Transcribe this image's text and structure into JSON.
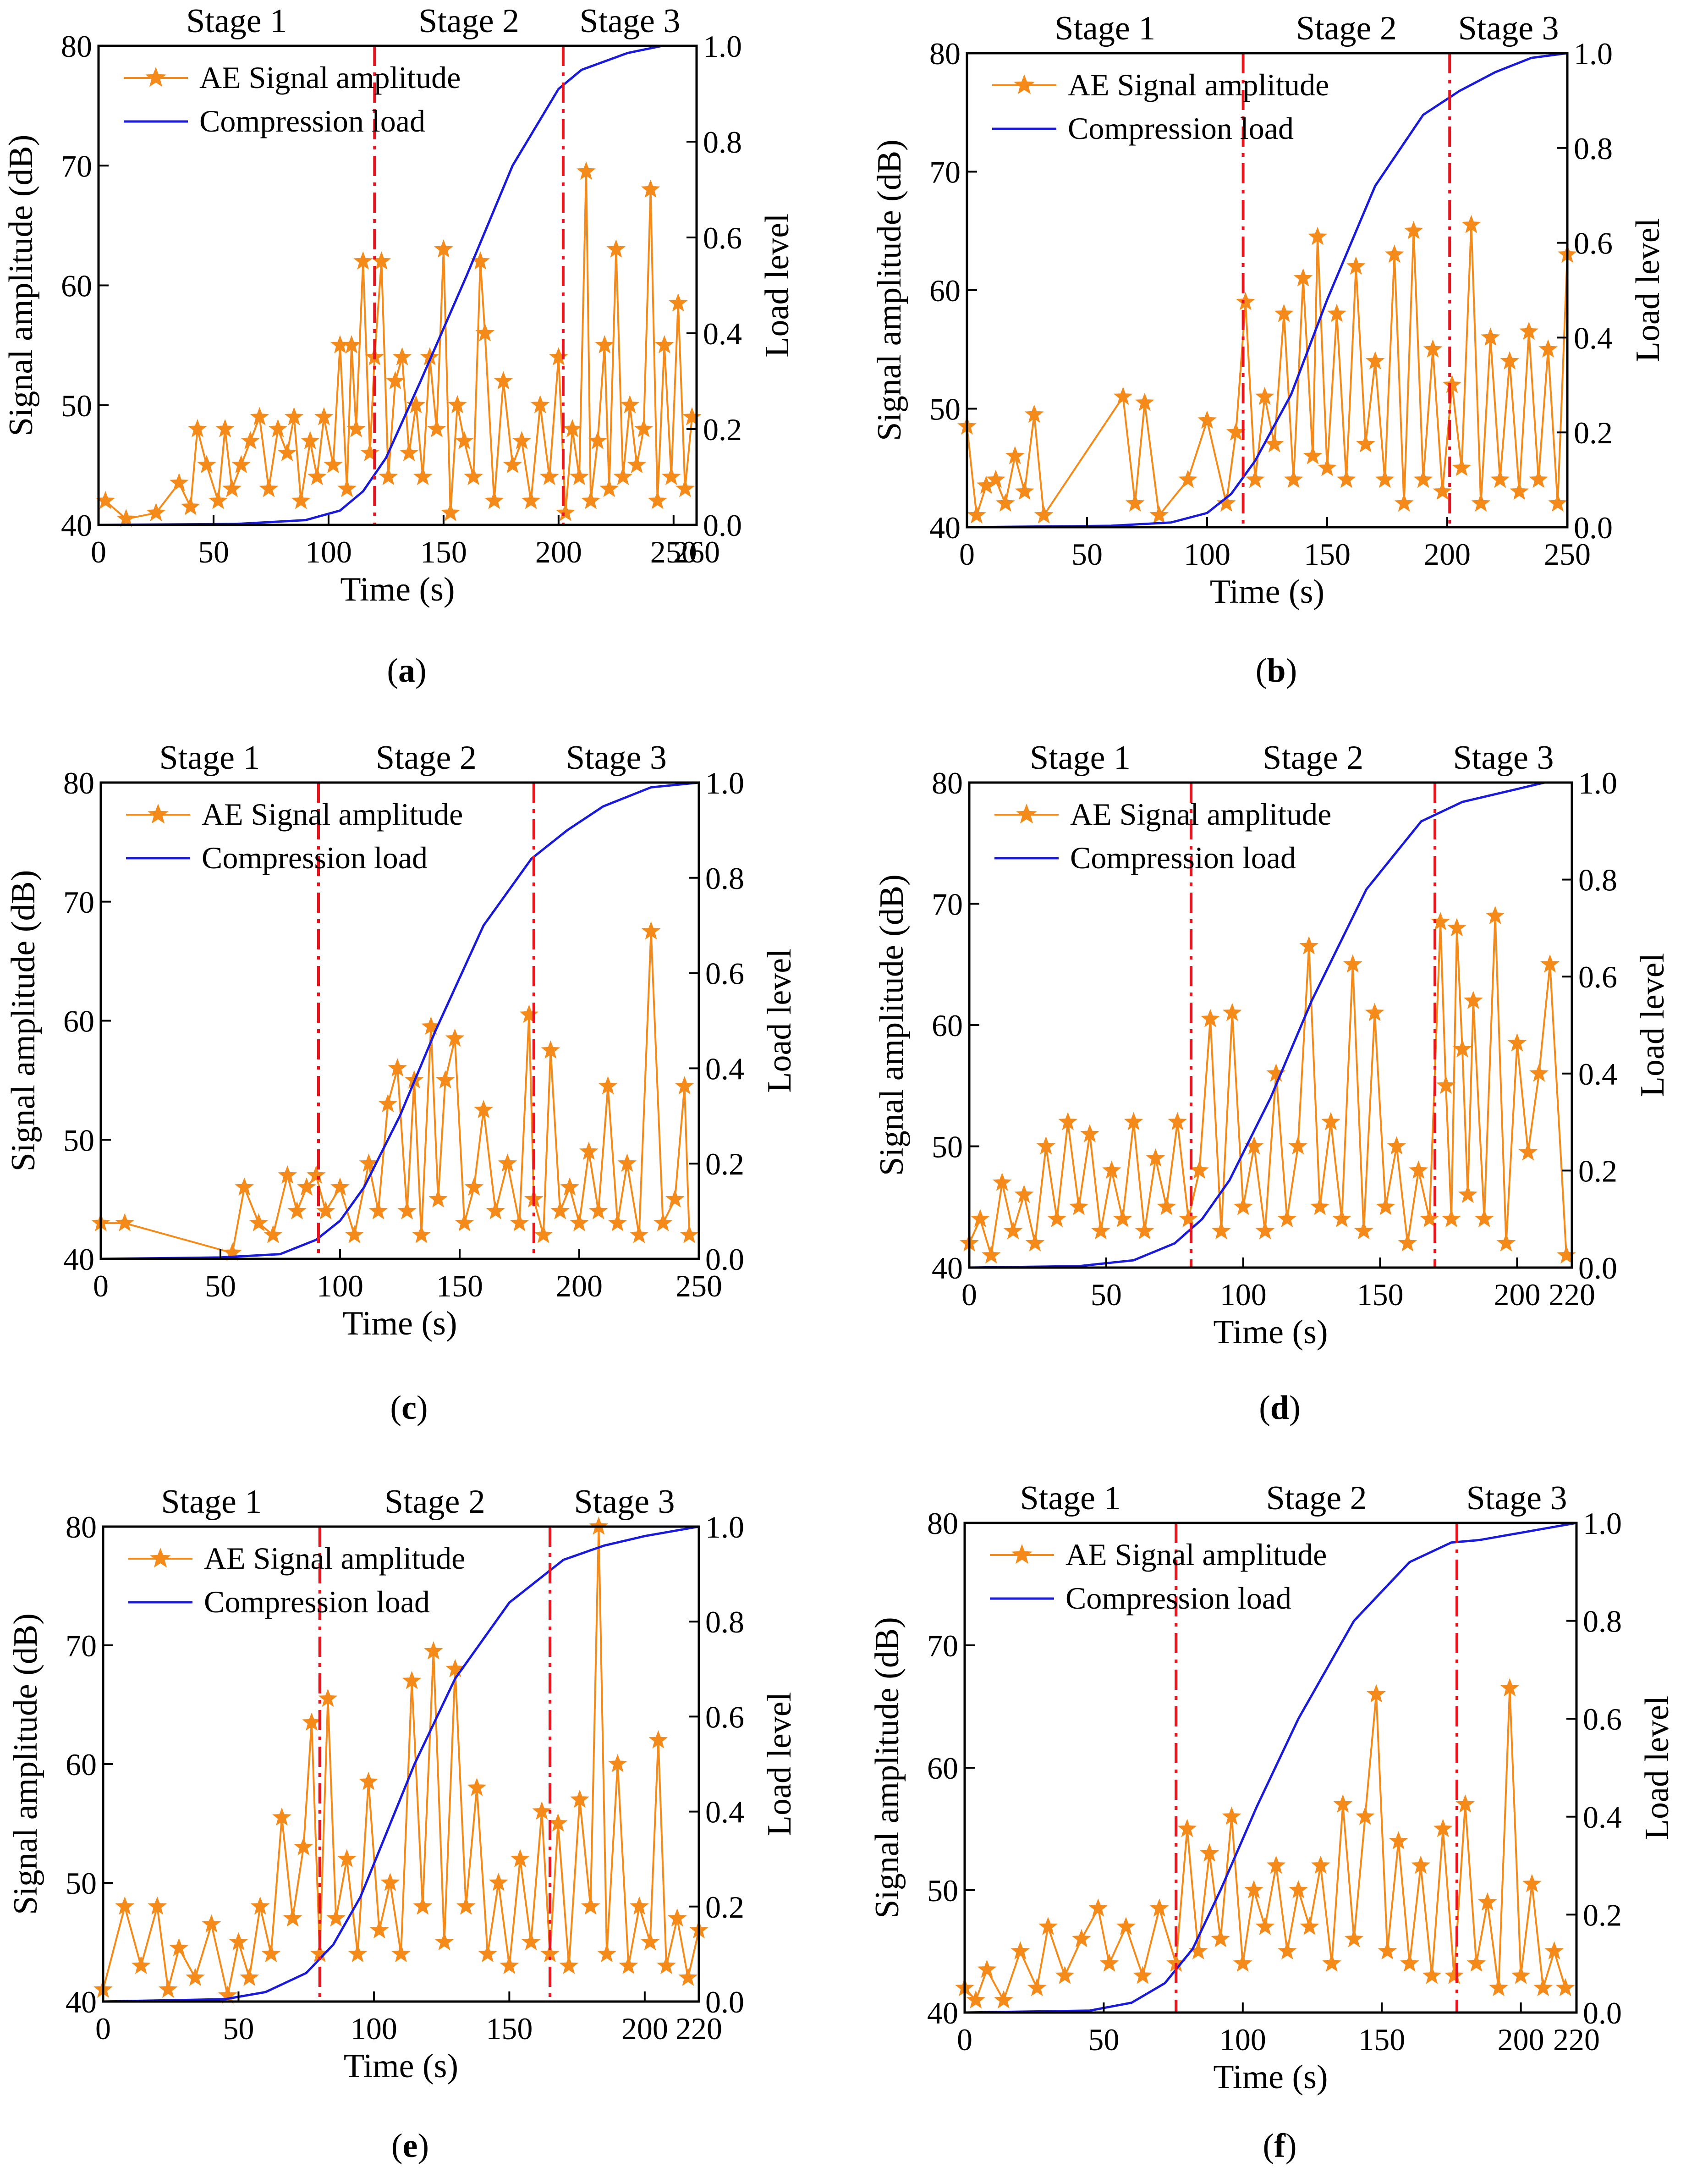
{
  "chart_data": [
    {
      "id": "a",
      "type": "line",
      "panel_label": "a",
      "xlabel": "Time (s)",
      "ylabel_left": "Signal amplitude (dB)",
      "ylabel_right": "Load level",
      "xlim": [
        0,
        260
      ],
      "xticks": [
        0,
        50,
        100,
        150,
        200,
        250,
        260
      ],
      "ylim_left": [
        40,
        80
      ],
      "yticks_left": [
        40,
        50,
        60,
        70,
        80
      ],
      "ylim_right": [
        0,
        1.0
      ],
      "yticks_right": [
        "0.0",
        "0.2",
        "0.4",
        "0.6",
        "0.8",
        "1.0"
      ],
      "stage_boundaries": [
        120,
        202
      ],
      "stages": [
        "Stage 1",
        "Stage 2",
        "Stage 3"
      ],
      "legend": [
        "AE Signal amplitude",
        "Compression load"
      ],
      "load_curve": {
        "x": [
          0,
          60,
          90,
          105,
          115,
          125,
          140,
          160,
          180,
          200,
          210,
          230,
          245,
          260
        ],
        "y": [
          0,
          0.002,
          0.01,
          0.03,
          0.07,
          0.14,
          0.3,
          0.52,
          0.75,
          0.91,
          0.95,
          0.985,
          1.0,
          1.0
        ]
      },
      "ae_signal": {
        "x": [
          3,
          12,
          25,
          35,
          40,
          43,
          47,
          52,
          55,
          58,
          62,
          66,
          70,
          74,
          78,
          82,
          85,
          88,
          92,
          95,
          98,
          102,
          105,
          108,
          110,
          112,
          115,
          118,
          120,
          123,
          126,
          129,
          132,
          135,
          138,
          141,
          144,
          147,
          150,
          153,
          156,
          159,
          163,
          166,
          168,
          172,
          176,
          180,
          184,
          188,
          192,
          196,
          200,
          203,
          206,
          209,
          212,
          214,
          217,
          220,
          222,
          225,
          228,
          231,
          234,
          237,
          240,
          243,
          246,
          249,
          252,
          255,
          258
        ],
        "y": [
          42,
          40.5,
          41,
          43.5,
          41.5,
          48,
          45,
          42,
          48,
          43,
          45,
          47,
          49,
          43,
          48,
          46,
          49,
          42,
          47,
          44,
          49,
          45,
          55,
          43,
          55,
          48,
          62,
          46,
          54,
          62,
          44,
          52,
          54,
          46,
          50,
          44,
          54,
          48,
          63,
          41,
          50,
          47,
          44,
          62,
          56,
          42,
          52,
          45,
          47,
          42,
          50,
          44,
          54,
          41,
          48,
          44,
          69.5,
          42,
          47,
          55,
          43,
          63,
          44,
          50,
          45,
          48,
          68,
          42,
          55,
          44,
          58.5,
          43,
          49
        ]
      }
    },
    {
      "id": "b",
      "type": "line",
      "panel_label": "b",
      "xlabel": "Time (s)",
      "ylabel_left": "Signal amplitude (dB)",
      "ylabel_right": "Load level",
      "xlim": [
        0,
        250
      ],
      "xticks": [
        0,
        50,
        100,
        150,
        200,
        250
      ],
      "ylim_left": [
        40,
        80
      ],
      "yticks_left": [
        40,
        50,
        60,
        70,
        80
      ],
      "ylim_right": [
        0,
        1.0
      ],
      "yticks_right": [
        "0.0",
        "0.2",
        "0.4",
        "0.6",
        "0.8",
        "1.0"
      ],
      "stage_boundaries": [
        115,
        201
      ],
      "stages": [
        "Stage 1",
        "Stage 2",
        "Stage 3"
      ],
      "legend": [
        "AE Signal amplitude",
        "Compression load"
      ],
      "load_curve": {
        "x": [
          0,
          60,
          85,
          100,
          110,
          120,
          135,
          150,
          170,
          190,
          205,
          220,
          235,
          250
        ],
        "y": [
          0,
          0.003,
          0.01,
          0.03,
          0.07,
          0.14,
          0.28,
          0.48,
          0.72,
          0.87,
          0.92,
          0.96,
          0.99,
          1.0
        ]
      },
      "ae_signal": {
        "x": [
          0,
          4,
          8,
          12,
          16,
          20,
          24,
          28,
          32,
          65,
          70,
          74,
          80,
          92,
          100,
          108,
          112,
          116,
          120,
          124,
          128,
          132,
          136,
          140,
          144,
          146,
          150,
          154,
          158,
          162,
          166,
          170,
          174,
          178,
          182,
          186,
          190,
          194,
          198,
          202,
          206,
          210,
          214,
          218,
          222,
          226,
          230,
          234,
          238,
          242,
          246,
          250
        ],
        "y": [
          48.5,
          41,
          43.5,
          44,
          42,
          46,
          43,
          49.5,
          41,
          51,
          42,
          50.5,
          41,
          44,
          49,
          42,
          48,
          59,
          44,
          51,
          47,
          58,
          44,
          61,
          46,
          64.5,
          45,
          58,
          44,
          62,
          47,
          54,
          44,
          63,
          42,
          65,
          44,
          55,
          43,
          52,
          45,
          65.5,
          42,
          56,
          44,
          54,
          43,
          56.5,
          44,
          55,
          42,
          63
        ]
      }
    },
    {
      "id": "c",
      "type": "line",
      "panel_label": "c",
      "xlabel": "Time (s)",
      "ylabel_left": "Signal amplitude (dB)",
      "ylabel_right": "Load level",
      "xlim": [
        0,
        250
      ],
      "xticks": [
        0,
        50,
        100,
        150,
        200,
        250
      ],
      "ylim_left": [
        40,
        80
      ],
      "yticks_left": [
        40,
        50,
        60,
        70,
        80
      ],
      "ylim_right": [
        0,
        1.0
      ],
      "yticks_right": [
        "0.0",
        "0.2",
        "0.4",
        "0.6",
        "0.8",
        "1.0"
      ],
      "stage_boundaries": [
        91,
        181
      ],
      "stages": [
        "Stage 1",
        "Stage 2",
        "Stage 3"
      ],
      "legend": [
        "AE Signal amplitude",
        "Compression load"
      ],
      "load_curve": {
        "x": [
          0,
          50,
          75,
          90,
          100,
          110,
          125,
          140,
          160,
          180,
          195,
          210,
          230,
          250
        ],
        "y": [
          0,
          0.003,
          0.01,
          0.04,
          0.08,
          0.15,
          0.3,
          0.48,
          0.7,
          0.84,
          0.9,
          0.95,
          0.99,
          1.0
        ]
      },
      "ae_signal": {
        "x": [
          0,
          10,
          55,
          60,
          66,
          72,
          78,
          82,
          86,
          90,
          94,
          100,
          106,
          112,
          116,
          120,
          124,
          128,
          131,
          134,
          138,
          141,
          144,
          148,
          152,
          156,
          160,
          165,
          170,
          175,
          179,
          181,
          185,
          188,
          192,
          196,
          200,
          204,
          208,
          212,
          216,
          220,
          225,
          230,
          235,
          240,
          244,
          246
        ],
        "y": [
          43,
          43,
          40.5,
          46,
          43,
          42,
          47,
          44,
          46,
          47,
          44,
          46,
          42,
          48,
          44,
          53,
          56,
          44,
          55,
          42,
          59.5,
          45,
          55,
          58.5,
          43,
          46,
          52.5,
          44,
          48,
          43,
          60.5,
          45,
          42,
          57.5,
          44,
          46,
          43,
          49,
          44,
          54.5,
          43,
          48,
          42,
          67.5,
          43,
          45,
          54.5,
          42
        ]
      }
    },
    {
      "id": "d",
      "type": "line",
      "panel_label": "d",
      "xlabel": "Time (s)",
      "ylabel_left": "Signal amplitude (dB)",
      "ylabel_right": "Load level",
      "xlim": [
        0,
        220
      ],
      "xticks": [
        0,
        50,
        100,
        150,
        200,
        220
      ],
      "ylim_left": [
        40,
        80
      ],
      "yticks_left": [
        40,
        50,
        60,
        70,
        80
      ],
      "ylim_right": [
        0,
        1.0
      ],
      "yticks_right": [
        "0.0",
        "0.2",
        "0.4",
        "0.6",
        "0.8",
        "1.0"
      ],
      "stage_boundaries": [
        81,
        170
      ],
      "stages": [
        "Stage 1",
        "Stage 2",
        "Stage 3"
      ],
      "legend": [
        "AE Signal amplitude",
        "Compression load"
      ],
      "load_curve": {
        "x": [
          0,
          40,
          60,
          75,
          85,
          95,
          110,
          125,
          145,
          165,
          180,
          195,
          210,
          220
        ],
        "y": [
          0,
          0.003,
          0.015,
          0.05,
          0.1,
          0.18,
          0.35,
          0.55,
          0.78,
          0.92,
          0.96,
          0.98,
          1.0,
          1.0
        ]
      },
      "ae_signal": {
        "x": [
          0,
          4,
          8,
          12,
          16,
          20,
          24,
          28,
          32,
          36,
          40,
          44,
          48,
          52,
          56,
          60,
          64,
          68,
          72,
          76,
          80,
          84,
          88,
          92,
          96,
          100,
          104,
          108,
          112,
          116,
          120,
          124,
          128,
          132,
          136,
          140,
          144,
          148,
          152,
          156,
          160,
          164,
          168,
          172,
          174,
          176,
          178,
          180,
          182,
          184,
          188,
          192,
          196,
          200,
          204,
          208,
          212,
          218
        ],
        "y": [
          42,
          44,
          41,
          47,
          43,
          46,
          42,
          50,
          44,
          52,
          45,
          51,
          43,
          48,
          44,
          52,
          43,
          49,
          45,
          52,
          44,
          48,
          60.5,
          43,
          61,
          45,
          50,
          43,
          56,
          44,
          50,
          66.5,
          45,
          52,
          44,
          65,
          43,
          61,
          45,
          50,
          42,
          48,
          44,
          68.5,
          55,
          44,
          68,
          58,
          46,
          62,
          44,
          69,
          42,
          58.5,
          49.5,
          56,
          65,
          41
        ]
      }
    },
    {
      "id": "e",
      "type": "line",
      "panel_label": "e",
      "xlabel": "Time (s)",
      "ylabel_left": "Signal amplitude (dB)",
      "ylabel_right": "Load level",
      "xlim": [
        0,
        220
      ],
      "xticks": [
        0,
        50,
        100,
        150,
        200,
        220
      ],
      "ylim_left": [
        40,
        80
      ],
      "yticks_left": [
        40,
        50,
        60,
        70,
        80
      ],
      "ylim_right": [
        0,
        1.0
      ],
      "yticks_right": [
        "0.0",
        "0.2",
        "0.4",
        "0.6",
        "0.8",
        "1.0"
      ],
      "stage_boundaries": [
        80,
        165
      ],
      "stages": [
        "Stage 1",
        "Stage 2",
        "Stage 3"
      ],
      "legend": [
        "AE Signal amplitude",
        "Compression load"
      ],
      "load_curve": {
        "x": [
          0,
          45,
          60,
          75,
          85,
          95,
          105,
          115,
          130,
          150,
          170,
          185,
          200,
          220
        ],
        "y": [
          0,
          0.005,
          0.02,
          0.06,
          0.12,
          0.22,
          0.36,
          0.5,
          0.68,
          0.84,
          0.93,
          0.96,
          0.98,
          1.0
        ]
      },
      "ae_signal": {
        "x": [
          0,
          8,
          14,
          20,
          24,
          28,
          34,
          40,
          46,
          50,
          54,
          58,
          62,
          66,
          70,
          74,
          77,
          80,
          83,
          86,
          90,
          94,
          98,
          102,
          106,
          110,
          114,
          118,
          122,
          126,
          130,
          134,
          138,
          142,
          146,
          150,
          154,
          158,
          162,
          165,
          168,
          172,
          176,
          180,
          183,
          186,
          190,
          194,
          198,
          202,
          205,
          208,
          212,
          216,
          220
        ],
        "y": [
          41,
          48,
          43,
          48,
          41,
          44.5,
          42,
          46.5,
          40.5,
          45,
          42,
          48,
          44,
          55.5,
          47,
          53,
          63.5,
          44,
          65.5,
          47,
          52,
          44,
          58.5,
          46,
          50,
          44,
          67,
          48,
          69.5,
          45,
          68,
          48,
          58,
          44,
          50,
          43,
          52,
          45,
          56,
          44,
          55,
          43,
          57,
          48,
          80,
          44,
          60,
          43,
          48,
          45,
          62,
          43,
          47,
          42,
          46
        ]
      }
    },
    {
      "id": "f",
      "type": "line",
      "panel_label": "f",
      "xlabel": "Time (s)",
      "ylabel_left": "Signal amplitude (dB)",
      "ylabel_right": "Load level",
      "xlim": [
        0,
        220
      ],
      "xticks": [
        0,
        50,
        100,
        150,
        200,
        220
      ],
      "ylim_left": [
        40,
        80
      ],
      "yticks_left": [
        40,
        50,
        60,
        70,
        80
      ],
      "ylim_right": [
        0,
        1.0
      ],
      "yticks_right": [
        "0.0",
        "0.2",
        "0.4",
        "0.6",
        "0.8",
        "1.0"
      ],
      "stage_boundaries": [
        76,
        177
      ],
      "stages": [
        "Stage 1",
        "Stage 2",
        "Stage 3"
      ],
      "legend": [
        "AE Signal amplitude",
        "Compression load"
      ],
      "load_curve": {
        "x": [
          0,
          45,
          60,
          72,
          82,
          92,
          105,
          120,
          140,
          160,
          175,
          185,
          200,
          220
        ],
        "y": [
          0,
          0.004,
          0.02,
          0.06,
          0.13,
          0.25,
          0.42,
          0.6,
          0.8,
          0.92,
          0.96,
          0.965,
          0.98,
          1.0
        ]
      },
      "ae_signal": {
        "x": [
          0,
          4,
          8,
          14,
          20,
          26,
          30,
          36,
          42,
          48,
          52,
          58,
          64,
          70,
          76,
          80,
          84,
          88,
          92,
          96,
          100,
          104,
          108,
          112,
          116,
          120,
          124,
          128,
          132,
          136,
          140,
          144,
          148,
          152,
          156,
          160,
          164,
          168,
          172,
          176,
          180,
          184,
          188,
          192,
          196,
          200,
          204,
          208,
          212,
          216
        ],
        "y": [
          42,
          41,
          43.5,
          41,
          45,
          42,
          47,
          43,
          46,
          48.5,
          44,
          47,
          43,
          48.5,
          44,
          55,
          45,
          53,
          46,
          56,
          44,
          50,
          47,
          52,
          45,
          50,
          47,
          52,
          44,
          57,
          46,
          56,
          66,
          45,
          54,
          44,
          52,
          43,
          55,
          43,
          57,
          44,
          49,
          42,
          66.5,
          43,
          50.5,
          42,
          45,
          42
        ]
      }
    }
  ]
}
